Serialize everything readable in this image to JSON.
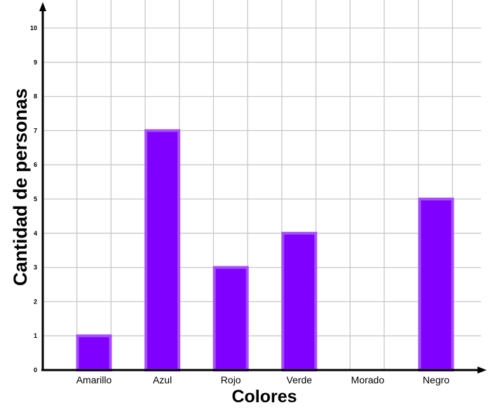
{
  "chart_data": {
    "type": "bar",
    "categories": [
      "Amarillo",
      "Azul",
      "Rojo",
      "Verde",
      "Morado",
      "Negro"
    ],
    "values": [
      1,
      7,
      3,
      4,
      0,
      5
    ],
    "xlabel": "Colores",
    "ylabel": "Cantidad de personas",
    "ylim": [
      0,
      10
    ],
    "yticks": [
      0,
      1,
      2,
      3,
      4,
      5,
      6,
      7,
      8,
      9,
      10
    ],
    "grid": true,
    "colors": {
      "bar_fill": "#7f00ff",
      "bar_edge": "#a64dff",
      "grid": "#c8c8c8",
      "axis": "#000000"
    }
  }
}
